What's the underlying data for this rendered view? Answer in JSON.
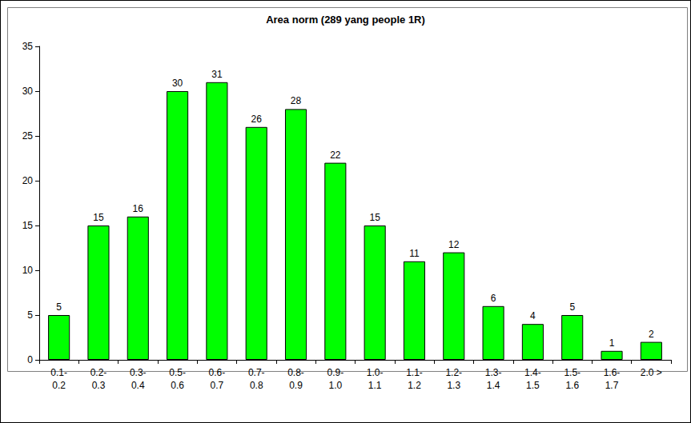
{
  "chart_data": {
    "type": "bar",
    "title": "Area norm (289 yang people 1R)",
    "categories": [
      "0.1-0.2",
      "0.2-0.3",
      "0.3-0.4",
      "0.5-0.6",
      "0.6-0.7",
      "0.7-0.8",
      "0.8-0.9",
      "0.9-1.0",
      "1.0-1.1",
      "1.1-1.2",
      "1.2-1.3",
      "1.3-1.4",
      "1.4-1.5",
      "1.5-1.6",
      "1.6-1.7",
      "2.0 >"
    ],
    "values": [
      5,
      15,
      16,
      30,
      31,
      26,
      28,
      22,
      15,
      11,
      12,
      6,
      4,
      5,
      1,
      2
    ],
    "color": "#00ff00",
    "ylim": [
      0,
      35
    ],
    "yticks": [
      0,
      5,
      10,
      15,
      20,
      25,
      30,
      35
    ],
    "grid": false,
    "data_labels": true
  }
}
